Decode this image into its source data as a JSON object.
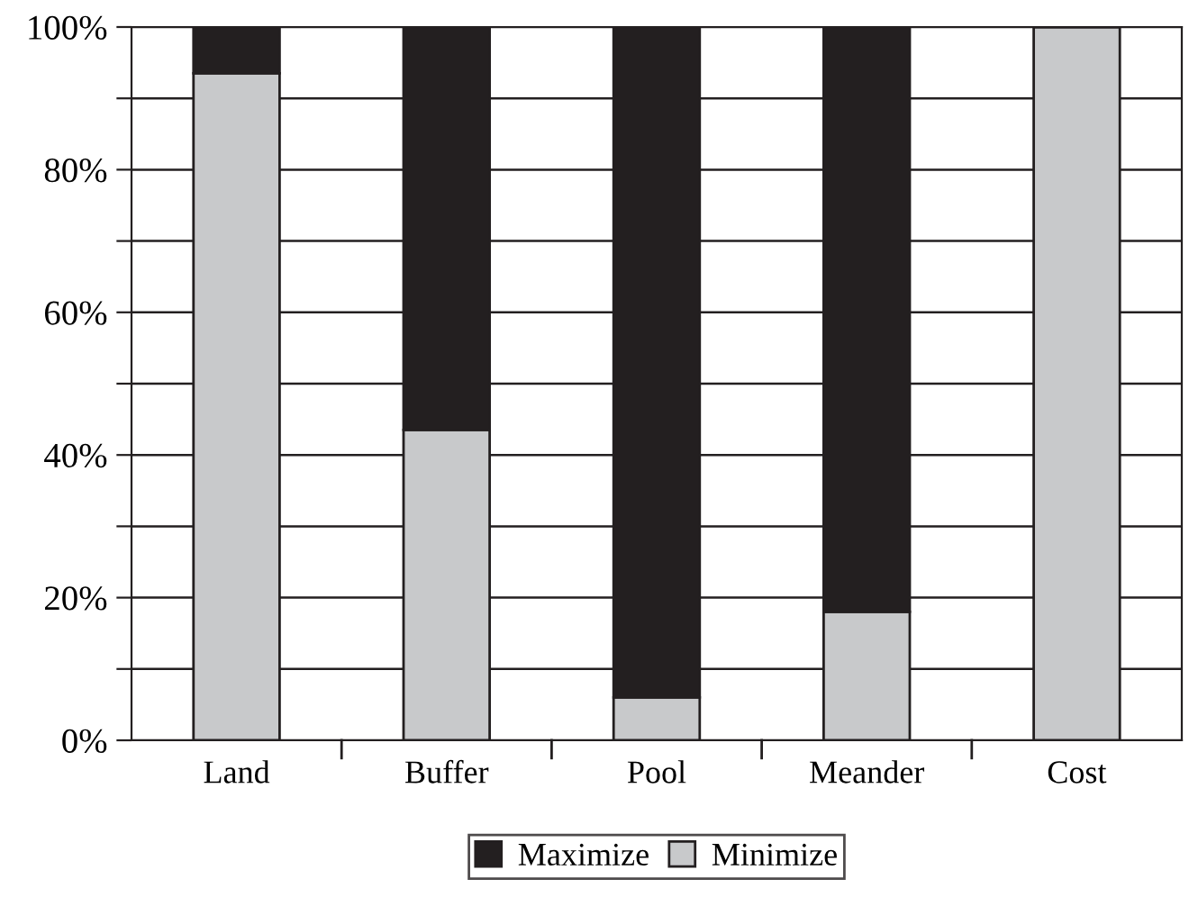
{
  "chart_data": {
    "type": "bar",
    "stacked": true,
    "categories": [
      "Land",
      "Buffer",
      "Pool",
      "Meander",
      "Cost"
    ],
    "series": [
      {
        "name": "Minimize",
        "color": "#c8c9cb",
        "values": [
          93.5,
          43.5,
          6,
          18,
          100
        ]
      },
      {
        "name": "Maximize",
        "color": "#231f20",
        "values": [
          6.5,
          56.5,
          94,
          82,
          0
        ]
      }
    ],
    "ylim": [
      0,
      100
    ],
    "yticks": [
      {
        "value": 0,
        "label": "0%"
      },
      {
        "value": 10,
        "label": null
      },
      {
        "value": 20,
        "label": "20%"
      },
      {
        "value": 30,
        "label": null
      },
      {
        "value": 40,
        "label": "40%"
      },
      {
        "value": 50,
        "label": null
      },
      {
        "value": 60,
        "label": "60%"
      },
      {
        "value": 70,
        "label": null
      },
      {
        "value": 80,
        "label": "80%"
      },
      {
        "value": 90,
        "label": null
      },
      {
        "value": 100,
        "label": "100%"
      }
    ],
    "grid": "y",
    "legend": "bottom"
  }
}
